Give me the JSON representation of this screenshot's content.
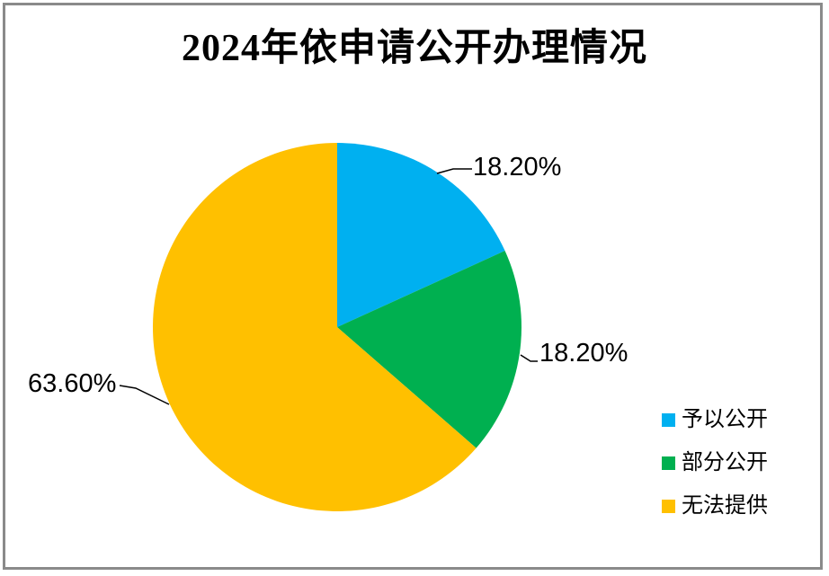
{
  "title": "2024年依申请公开办理情况",
  "chart_data": {
    "type": "pie",
    "title": "2024年依申请公开办理情况",
    "categories": [
      "予以公开",
      "部分公开",
      "无法提供"
    ],
    "values": [
      18.2,
      18.2,
      63.6
    ],
    "value_unit": "%",
    "data_labels": [
      "18.20%",
      "18.20%",
      "63.60%"
    ],
    "start_angle_deg": 0,
    "direction": "clockwise",
    "legend_position": "bottom-right",
    "slices": [
      {
        "name": "予以公开",
        "value": 18.2,
        "label": "18.20%",
        "color": "#00B0F0"
      },
      {
        "name": "部分公开",
        "value": 18.2,
        "label": "18.20%",
        "color": "#00B050"
      },
      {
        "name": "无法提供",
        "value": 63.6,
        "label": "63.60%",
        "color": "#FFC000"
      }
    ]
  },
  "colors": {
    "frame_border": "#8A8A8A",
    "title_text": "#000000",
    "label_text": "#000000",
    "leader_line": "#000000",
    "background": "#FFFFFF"
  }
}
